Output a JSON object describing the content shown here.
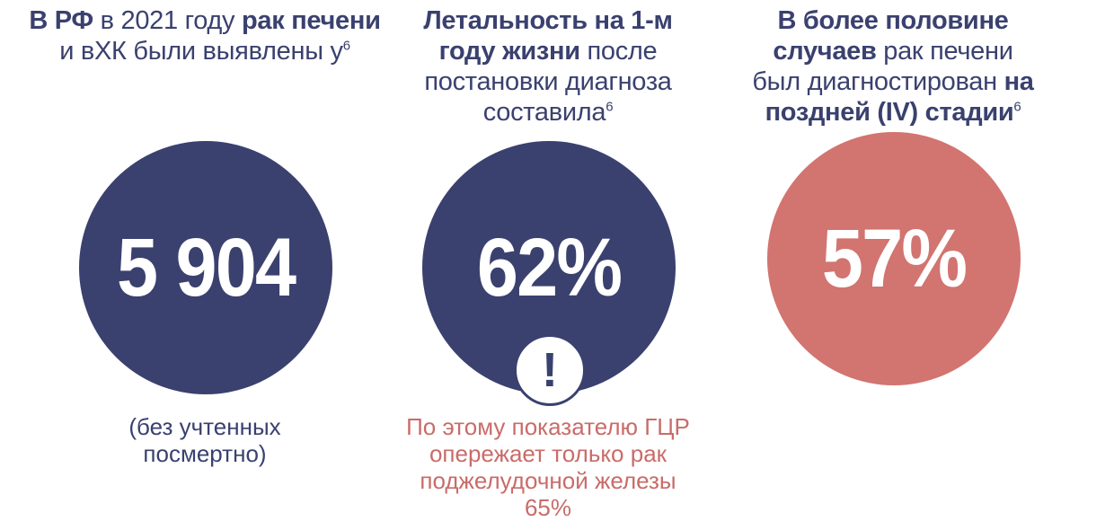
{
  "stat1": {
    "heading_b1": "В РФ",
    "heading_t1": " в 2021 году ",
    "heading_b2": "рак печени",
    "heading_t2": " и вХК были выявлены у",
    "footnote": "6",
    "value": "5 904",
    "note": "(без учтенных посмертно)"
  },
  "stat2": {
    "heading_b1": "Летальность на 1-м году жизни",
    "heading_t1": " после постановки диагноза составила",
    "footnote": "6",
    "value": "62%",
    "alert_mark": "!",
    "note": "По этому показателю ГЦР опережает только рак поджелудочной железы 65%"
  },
  "stat3": {
    "heading_b1": "В более половине случаев",
    "heading_t1": " рак печени был диагностирован ",
    "heading_b2": "на поздней (IV) стадии",
    "footnote": "6",
    "value": "57%"
  },
  "colors": {
    "navy": "#3a416f",
    "coral": "#d27470",
    "note_red": "#c96c69"
  }
}
